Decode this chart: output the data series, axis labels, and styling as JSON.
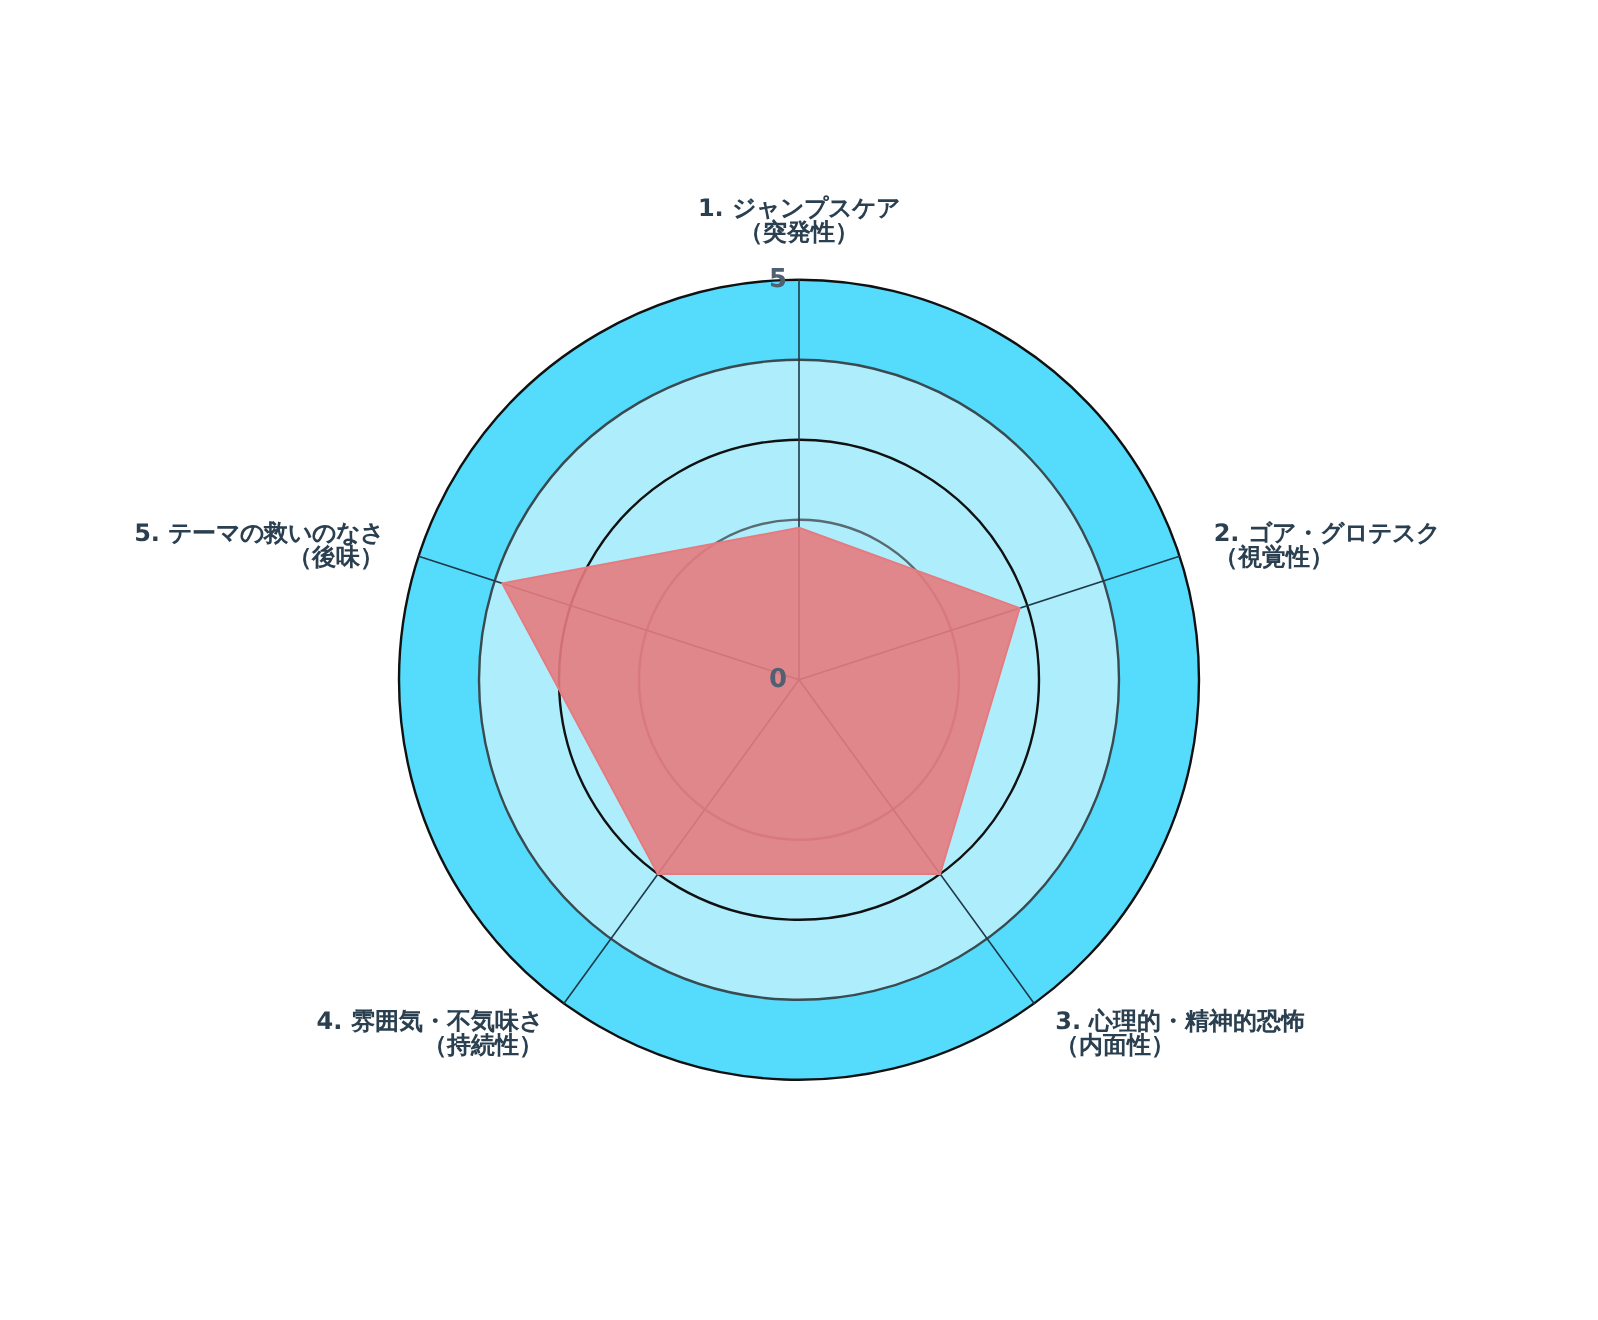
{
  "chart_data": {
    "type": "radar",
    "categories": [
      "1. ジャンプスケア（突発性）",
      "2. ゴア・グロテスク（視覚性）",
      "3. 心理的・精神的恐怖（内面性）",
      "4. 雰囲気・不気味さ（持続性）",
      "5. テーマの救いのなさ（後味）"
    ],
    "series": [
      {
        "color": "#e57b7f",
        "values": [
          1.9,
          2.9,
          3.0,
          3.0,
          3.9
        ]
      }
    ],
    "ylim": [
      0,
      5
    ],
    "yticks": [
      0,
      5
    ],
    "grid": true,
    "marker": "none"
  }
}
